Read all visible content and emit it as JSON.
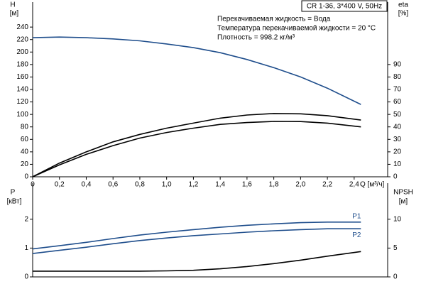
{
  "chart_data": [
    {
      "type": "line",
      "info_title": "CR 1-36, 3*400 V, 50Hz",
      "info_lines": [
        "Перекачиваемая жидкость = Вода",
        "Температура перекачиваемой жидкости = 20 °C",
        "Плотность = 998.2 кг/м³"
      ],
      "ylabel": "H",
      "yunit": "[м]",
      "y2label": "eta",
      "y2unit": "[%]",
      "xlabel": "Q [м³/ч]",
      "x": [
        0,
        0.2,
        0.4,
        0.6,
        0.8,
        1.0,
        1.2,
        1.4,
        1.6,
        1.8,
        2.0,
        2.2,
        2.45
      ],
      "xlim": [
        0,
        2.65
      ],
      "xticks": [
        0,
        {
          "value": 0.2,
          "label": "0,2"
        },
        {
          "value": 0.4,
          "label": "0,4"
        },
        {
          "value": 0.6,
          "label": "0,6"
        },
        {
          "value": 0.8,
          "label": "0,8"
        },
        {
          "value": 1.0,
          "label": "1,0"
        },
        {
          "value": 1.2,
          "label": "1,2"
        },
        {
          "value": 1.4,
          "label": "1,4"
        },
        {
          "value": 1.6,
          "label": "1,6"
        },
        {
          "value": 1.8,
          "label": "1,8"
        },
        {
          "value": 2.0,
          "label": "2,0"
        },
        {
          "value": 2.2,
          "label": "2,2"
        },
        {
          "value": 2.4,
          "label": "2,4"
        }
      ],
      "ylim": [
        0,
        280
      ],
      "yticks": [
        0,
        20,
        40,
        60,
        80,
        100,
        120,
        140,
        160,
        180,
        200,
        220,
        240
      ],
      "y2lim": [
        0,
        140
      ],
      "y2ticks": [
        0,
        10,
        20,
        30,
        40,
        50,
        60,
        70,
        80,
        90
      ],
      "series": [
        {
          "color": "#1f4e8c",
          "values": [
            223,
            224,
            223,
            221,
            218,
            213,
            207,
            199,
            188,
            175,
            160,
            142,
            116
          ]
        },
        {
          "color": "#000000",
          "axis": "y2",
          "values": [
            0,
            11,
            20,
            28,
            34,
            39,
            43,
            47,
            49.5,
            50.7,
            50.5,
            49,
            45.5
          ]
        },
        {
          "color": "#000000",
          "axis": "y2",
          "values": [
            0,
            9.5,
            18,
            25,
            31,
            35.5,
            39,
            42,
            43.5,
            44.4,
            44.3,
            43,
            40
          ]
        }
      ]
    },
    {
      "type": "line",
      "ylabel": "P",
      "yunit": "[кВт]",
      "y2label": "NPSH",
      "y2unit": "[м]",
      "x": [
        0,
        0.2,
        0.4,
        0.6,
        0.8,
        1.0,
        1.2,
        1.4,
        1.6,
        1.8,
        2.0,
        2.2,
        2.45
      ],
      "xlim": [
        0,
        2.65
      ],
      "ylim": [
        0,
        3.25
      ],
      "yticks": [
        0,
        1,
        2
      ],
      "y2lim": [
        0,
        16.25
      ],
      "y2ticks": [
        0,
        5,
        10
      ],
      "series": [
        {
          "name": "P1",
          "color": "#1f4e8c",
          "values": [
            0.97,
            1.08,
            1.2,
            1.33,
            1.45,
            1.55,
            1.64,
            1.72,
            1.79,
            1.84,
            1.88,
            1.9,
            1.9
          ]
        },
        {
          "name": "P2",
          "color": "#1f4e8c",
          "values": [
            0.81,
            0.92,
            1.03,
            1.15,
            1.26,
            1.35,
            1.43,
            1.49,
            1.55,
            1.6,
            1.64,
            1.67,
            1.67
          ]
        },
        {
          "color": "#000000",
          "axis": "y2",
          "values": [
            1,
            1,
            1,
            1,
            1,
            1.05,
            1.15,
            1.4,
            1.8,
            2.3,
            2.9,
            3.6,
            4.4
          ]
        }
      ]
    }
  ]
}
